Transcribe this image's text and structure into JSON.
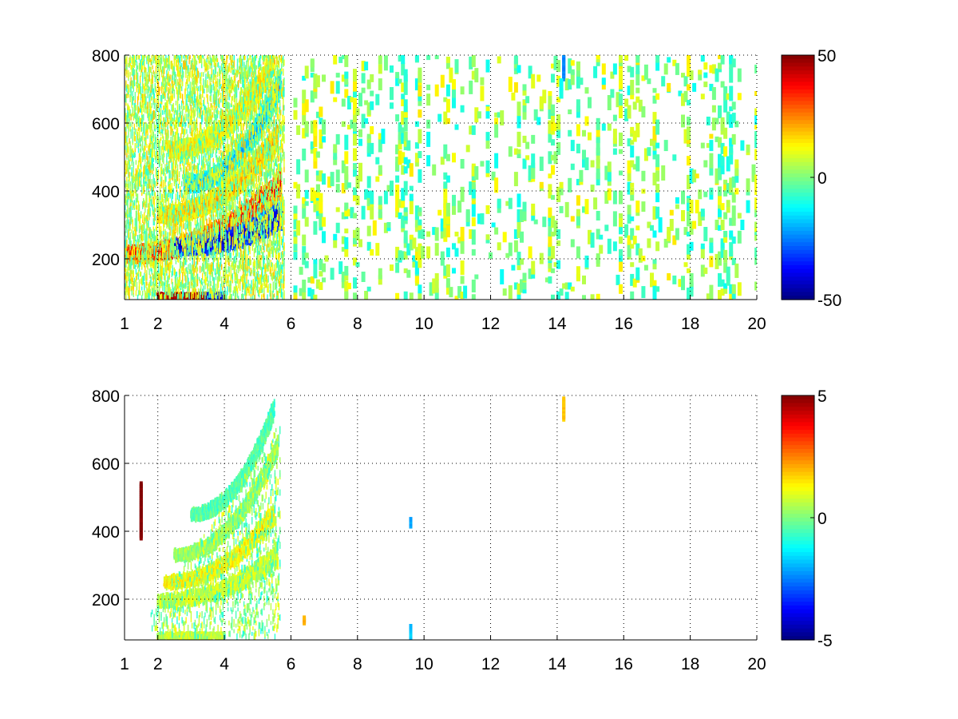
{
  "figure": {
    "background": "#ffffff"
  },
  "chart_data": [
    {
      "type": "heatmap",
      "title": "",
      "xlabel": "",
      "ylabel": "",
      "xlim": [
        1,
        20
      ],
      "ylim": [
        80,
        800
      ],
      "x_ticks": [
        1,
        2,
        4,
        6,
        8,
        10,
        12,
        14,
        16,
        18,
        20
      ],
      "x_tick_labels": [
        "1",
        "2",
        "4",
        "6",
        "8",
        "10",
        "12",
        "14",
        "16",
        "18",
        "20"
      ],
      "y_ticks": [
        200,
        400,
        600,
        800
      ],
      "y_tick_labels": [
        "200",
        "400",
        "600",
        "800"
      ],
      "grid": true,
      "grid_style": "dotted",
      "colormap": "jet",
      "clim": [
        -50,
        50
      ],
      "colorbar": {
        "ticks": [
          -50,
          0,
          50
        ],
        "tick_labels": [
          "-50",
          "0",
          "50"
        ]
      },
      "features": [
        {
          "kind": "arc",
          "x_start": 1.0,
          "x_end": 5.7,
          "y_start": 215,
          "y_end": 420,
          "value": 40
        },
        {
          "kind": "arc",
          "x_start": 2.5,
          "x_end": 5.75,
          "y_start": 235,
          "y_end": 330,
          "value": -45
        },
        {
          "kind": "arc",
          "x_start": 2.0,
          "x_end": 5.6,
          "y_start": 330,
          "y_end": 560,
          "value": 22
        },
        {
          "kind": "arc",
          "x_start": 2.8,
          "x_end": 5.7,
          "y_start": 420,
          "y_end": 720,
          "value": -20
        },
        {
          "kind": "arc",
          "x_start": 2.3,
          "x_end": 5.5,
          "y_start": 520,
          "y_end": 780,
          "value": 15
        },
        {
          "kind": "band",
          "x_start": 2.0,
          "x_end": 3.5,
          "y": 90,
          "value": 45
        },
        {
          "kind": "band",
          "x_start": 3.5,
          "x_end": 4.0,
          "y": 90,
          "value": -40
        },
        {
          "kind": "band",
          "x_start": 1.0,
          "x_end": 1.8,
          "y": 198,
          "value": 25
        },
        {
          "kind": "column",
          "x": 14.2,
          "y_start": 730,
          "y_end": 800,
          "value": -25
        },
        {
          "kind": "scatter_noise",
          "x_start": 6.0,
          "x_end": 20.0,
          "value_range": [
            -12,
            15
          ]
        }
      ]
    },
    {
      "type": "heatmap",
      "title": "",
      "xlabel": "",
      "ylabel": "",
      "xlim": [
        1,
        20
      ],
      "ylim": [
        80,
        800
      ],
      "x_ticks": [
        1,
        2,
        4,
        6,
        8,
        10,
        12,
        14,
        16,
        18,
        20
      ],
      "x_tick_labels": [
        "1",
        "2",
        "4",
        "6",
        "8",
        "10",
        "12",
        "14",
        "16",
        "18",
        "20"
      ],
      "y_ticks": [
        200,
        400,
        600,
        800
      ],
      "y_tick_labels": [
        "200",
        "400",
        "600",
        "800"
      ],
      "grid": true,
      "grid_style": "dotted",
      "colormap": "jet",
      "clim": [
        -5,
        5
      ],
      "colorbar": {
        "ticks": [
          -5,
          0,
          5
        ],
        "tick_labels": [
          "-5",
          "0",
          "5"
        ]
      },
      "features": [
        {
          "kind": "arc",
          "x_start": 2.0,
          "x_end": 5.6,
          "y_start": 195,
          "y_end": 330,
          "value": 0.8
        },
        {
          "kind": "arc",
          "x_start": 2.2,
          "x_end": 5.5,
          "y_start": 250,
          "y_end": 450,
          "value": 1.5
        },
        {
          "kind": "arc",
          "x_start": 2.5,
          "x_end": 5.6,
          "y_start": 330,
          "y_end": 650,
          "value": 0.3
        },
        {
          "kind": "arc",
          "x_start": 3.0,
          "x_end": 5.5,
          "y_start": 450,
          "y_end": 760,
          "value": -0.5
        },
        {
          "kind": "band",
          "x_start": 2.0,
          "x_end": 4.0,
          "y": 92,
          "value": 0.6
        },
        {
          "kind": "column",
          "x": 14.2,
          "y_start": 730,
          "y_end": 790,
          "value": 1.8
        },
        {
          "kind": "column",
          "x": 9.6,
          "y_start": 415,
          "y_end": 435,
          "value": -2.2
        },
        {
          "kind": "column",
          "x": 9.6,
          "y_start": 80,
          "y_end": 120,
          "value": -1.8
        },
        {
          "kind": "column",
          "x": 6.4,
          "y_start": 130,
          "y_end": 145,
          "value": 2.0
        },
        {
          "kind": "column",
          "x": 1.5,
          "y_start": 380,
          "y_end": 540,
          "value": 5.0
        }
      ]
    }
  ]
}
